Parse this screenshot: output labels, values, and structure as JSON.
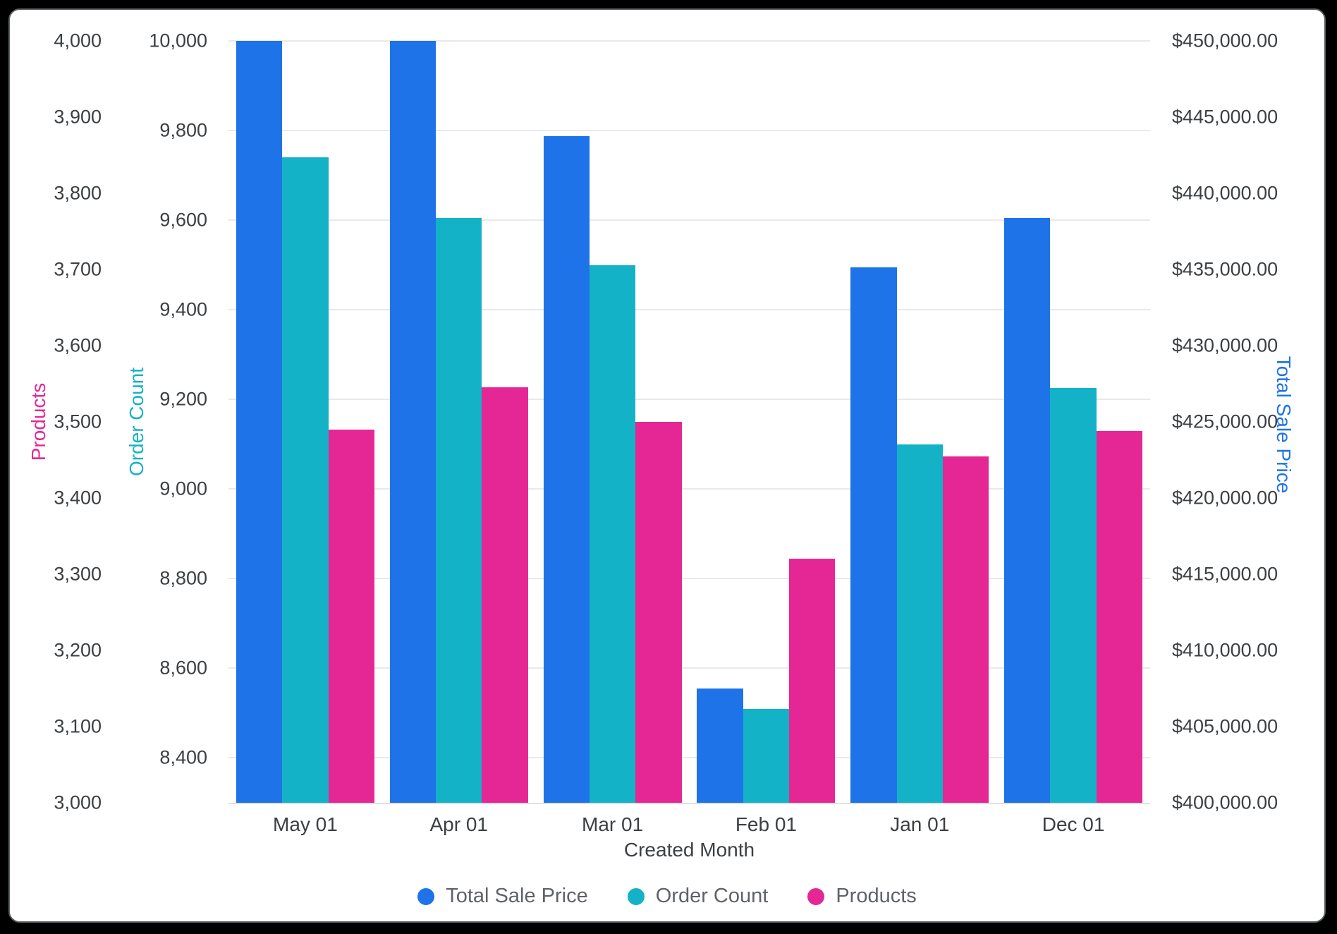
{
  "window": {
    "background": "#000000",
    "card_background": "#ffffff",
    "card_border": "#5c6165"
  },
  "chart_data": {
    "type": "bar",
    "title": "",
    "xlabel": "Created Month",
    "grid": true,
    "gridline_axis": "order_count",
    "gridline_color": "#e9e9eb",
    "axis_line_color": "#e0e0e0",
    "tick_text_color": "#3c4043",
    "legend_position": "bottom",
    "legend_text_color": "#5f6368",
    "categories": [
      "May 01",
      "Apr 01",
      "Mar 01",
      "Feb 01",
      "Jan 01",
      "Dec 01"
    ],
    "series": [
      {
        "name": "Total Sale Price",
        "axis": "total_sale_price",
        "color": "#1e73e8",
        "values": [
          450000,
          450000,
          443750,
          407500,
          435150,
          438400
        ]
      },
      {
        "name": "Order Count",
        "axis": "order_count",
        "color": "#14b2c6",
        "values": [
          9740,
          9605,
          9500,
          8510,
          9100,
          9225
        ]
      },
      {
        "name": "Products",
        "axis": "products",
        "color": "#e42794",
        "values": [
          3490,
          3545,
          3500,
          3320,
          3455,
          3488
        ]
      }
    ],
    "axes": {
      "products": {
        "title": "Products",
        "side": "left",
        "title_color": "#e42794",
        "min": 3000,
        "max": 4000,
        "ticks": [
          {
            "label": "4,000",
            "value": 4000
          },
          {
            "label": "3,900",
            "value": 3900
          },
          {
            "label": "3,800",
            "value": 3800
          },
          {
            "label": "3,700",
            "value": 3700
          },
          {
            "label": "3,600",
            "value": 3600
          },
          {
            "label": "3,500",
            "value": 3500
          },
          {
            "label": "3,400",
            "value": 3400
          },
          {
            "label": "3,300",
            "value": 3300
          },
          {
            "label": "3,200",
            "value": 3200
          },
          {
            "label": "3,100",
            "value": 3100
          },
          {
            "label": "3,000",
            "value": 3000
          }
        ]
      },
      "order_count": {
        "title": "Order Count",
        "side": "left",
        "title_color": "#14b2c6",
        "min": 8300,
        "max": 10000,
        "ticks": [
          {
            "label": "10,000",
            "value": 10000
          },
          {
            "label": "9,800",
            "value": 9800
          },
          {
            "label": "9,600",
            "value": 9600
          },
          {
            "label": "9,400",
            "value": 9400
          },
          {
            "label": "9,200",
            "value": 9200
          },
          {
            "label": "9,000",
            "value": 9000
          },
          {
            "label": "8,800",
            "value": 8800
          },
          {
            "label": "8,600",
            "value": 8600
          },
          {
            "label": "8,400",
            "value": 8400
          }
        ]
      },
      "total_sale_price": {
        "title": "Total Sale Price",
        "side": "right",
        "title_color": "#1e73e8",
        "min": 400000,
        "max": 450000,
        "ticks": [
          {
            "label": "$450,000.00",
            "value": 450000
          },
          {
            "label": "$445,000.00",
            "value": 445000
          },
          {
            "label": "$440,000.00",
            "value": 440000
          },
          {
            "label": "$435,000.00",
            "value": 435000
          },
          {
            "label": "$430,000.00",
            "value": 430000
          },
          {
            "label": "$425,000.00",
            "value": 425000
          },
          {
            "label": "$420,000.00",
            "value": 420000
          },
          {
            "label": "$415,000.00",
            "value": 415000
          },
          {
            "label": "$410,000.00",
            "value": 410000
          },
          {
            "label": "$405,000.00",
            "value": 405000
          },
          {
            "label": "$400,000.00",
            "value": 400000
          }
        ]
      }
    }
  }
}
